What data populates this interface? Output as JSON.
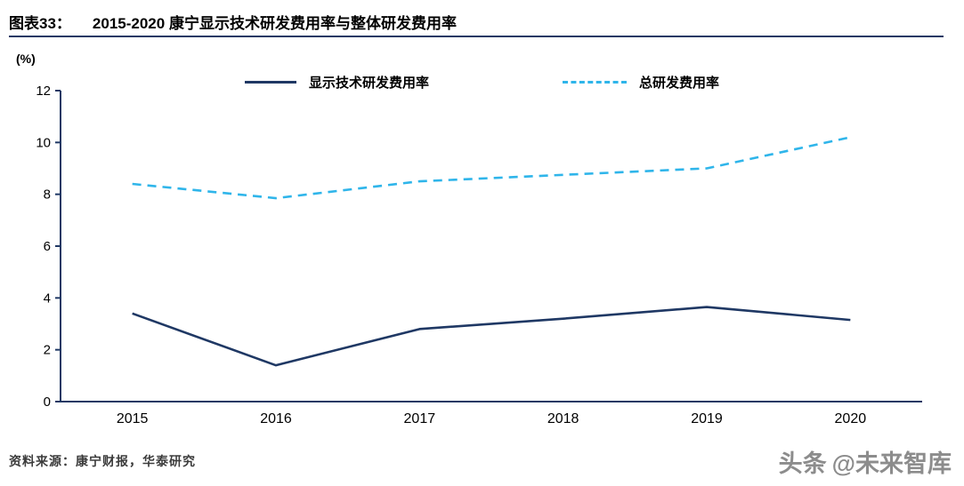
{
  "header": {
    "label": "图表33：",
    "title": "2015-2020 康宁显示技术研发费用率与整体研发费用率"
  },
  "colors": {
    "navy": "#1F3864",
    "cyan": "#2FB5EA",
    "rule": "#1F3864",
    "watermark_gray": "#8C8C8C"
  },
  "footer": {
    "source": "资料来源：康宁财报，华泰研究",
    "watermark_brand": "头条",
    "watermark_handle": "@未来智库"
  },
  "chart_data": {
    "type": "line",
    "title": "2015-2020 康宁显示技术研发费用率与整体研发费用率",
    "categories": [
      "2015",
      "2016",
      "2017",
      "2018",
      "2019",
      "2020"
    ],
    "series": [
      {
        "name": "显示技术研发费用率",
        "style": "solid",
        "color": "#1F3864",
        "values": [
          3.4,
          1.4,
          2.8,
          3.2,
          3.65,
          3.15
        ]
      },
      {
        "name": "总研发费用率",
        "style": "dashed",
        "color": "#2FB5EA",
        "values": [
          8.4,
          7.85,
          8.5,
          8.75,
          9.0,
          10.2
        ]
      }
    ],
    "xlabel": "",
    "ylabel": "(%)",
    "ylim": [
      0,
      12
    ],
    "yticks": [
      0,
      2,
      4,
      6,
      8,
      10,
      12
    ],
    "grid": false,
    "legend_position": "top"
  }
}
